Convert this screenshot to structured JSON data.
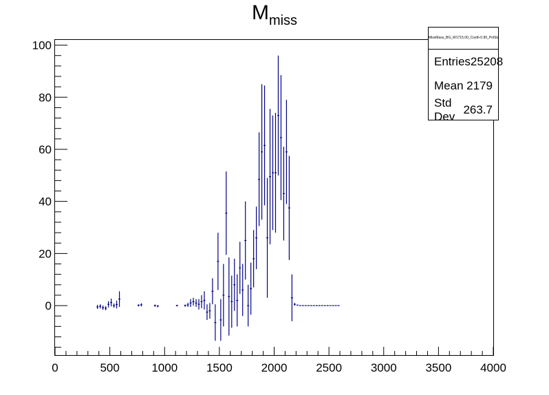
{
  "chart_data": {
    "type": "scatter",
    "style": "histogram-error-bars",
    "title": "M",
    "title_subscript": "miss",
    "xlabel": "",
    "ylabel": "",
    "xlim": [
      0,
      4000
    ],
    "ylim": [
      -19,
      102
    ],
    "x_ticks": [
      0,
      500,
      1000,
      1500,
      2000,
      2500,
      3000,
      3500,
      4000
    ],
    "y_ticks": [
      0,
      20,
      40,
      60,
      80,
      100
    ],
    "grid": false,
    "marker_color": "#00007f",
    "series": [
      {
        "bin_width": 25,
        "x": [
          387.5,
          412.5,
          437.5,
          462.5,
          487.5,
          512.5,
          537.5,
          562.5,
          587.5,
          762.5,
          787.5,
          912.5,
          937.5,
          1112.5,
          1187.5,
          1212.5,
          1237.5,
          1262.5,
          1287.5,
          1312.5,
          1337.5,
          1362.5,
          1387.5,
          1412.5,
          1437.5,
          1462.5,
          1487.5,
          1512.5,
          1537.5,
          1562.5,
          1587.5,
          1612.5,
          1637.5,
          1662.5,
          1687.5,
          1712.5,
          1737.5,
          1762.5,
          1787.5,
          1812.5,
          1837.5,
          1862.5,
          1887.5,
          1912.5,
          1937.5,
          1962.5,
          1987.5,
          2012.5,
          2037.5,
          2062.5,
          2087.5,
          2112.5,
          2137.5,
          2162.5,
          2187.5,
          2212.5,
          2237.5,
          2262.5,
          2287.5,
          2312.5,
          2337.5,
          2362.5,
          2387.5,
          2412.5,
          2437.5,
          2462.5,
          2487.5,
          2512.5,
          2537.5,
          2562.5,
          2587.5
        ],
        "y": [
          -0.5,
          -0.3,
          -0.8,
          -1.0,
          0.5,
          1.2,
          0.0,
          0.4,
          2.5,
          0.1,
          0.3,
          0.0,
          -0.2,
          0.0,
          0.0,
          0.3,
          1.0,
          1.5,
          1.0,
          0.5,
          1.5,
          2.0,
          -2.5,
          -2.0,
          5.5,
          -6.5,
          17.0,
          -5.5,
          4.0,
          35.5,
          3.5,
          1.5,
          8.0,
          2.0,
          14.5,
          6.0,
          25.0,
          0.0,
          6.5,
          18.0,
          26.0,
          48.5,
          59.0,
          61.5,
          26.0,
          49.5,
          51.0,
          51.0,
          73.0,
          64.5,
          43.0,
          59.0,
          37.5,
          3.0,
          0.5,
          0.2,
          0.0,
          0.0,
          0.0,
          0.0,
          0.0,
          0.0,
          0.0,
          0.0,
          0.0,
          0.0,
          0.0,
          0.0,
          0.0,
          0.0,
          0.0
        ],
        "yerr": [
          0.8,
          0.8,
          0.8,
          0.8,
          1.2,
          1.5,
          0.8,
          1.5,
          3.0,
          0.4,
          0.6,
          0.4,
          0.4,
          0.3,
          0.4,
          0.8,
          1.5,
          1.5,
          1.5,
          2.0,
          2.5,
          3.5,
          3.0,
          3.0,
          5.0,
          7.0,
          11.0,
          8.0,
          12.0,
          16.0,
          15.0,
          10.0,
          10.0,
          10.0,
          10.0,
          10.0,
          15.0,
          8.0,
          10.0,
          11.0,
          12.0,
          18.0,
          26.0,
          23.0,
          23.0,
          26.0,
          22.0,
          23.0,
          23.0,
          24.0,
          18.0,
          20.0,
          20.0,
          9.0,
          0.5,
          0,
          0,
          0,
          0,
          0,
          0,
          0,
          0,
          0,
          0,
          0,
          0,
          0,
          0,
          0,
          0
        ]
      }
    ]
  },
  "stats": {
    "name": "MissMass_BG_W1715.00_Costh-0.90_PolStateD0.50_",
    "rows": [
      {
        "label": "Entries",
        "value": "25208"
      },
      {
        "label": "Mean",
        "value": "2179"
      },
      {
        "label": "Std Dev",
        "value": "263.7"
      }
    ]
  }
}
